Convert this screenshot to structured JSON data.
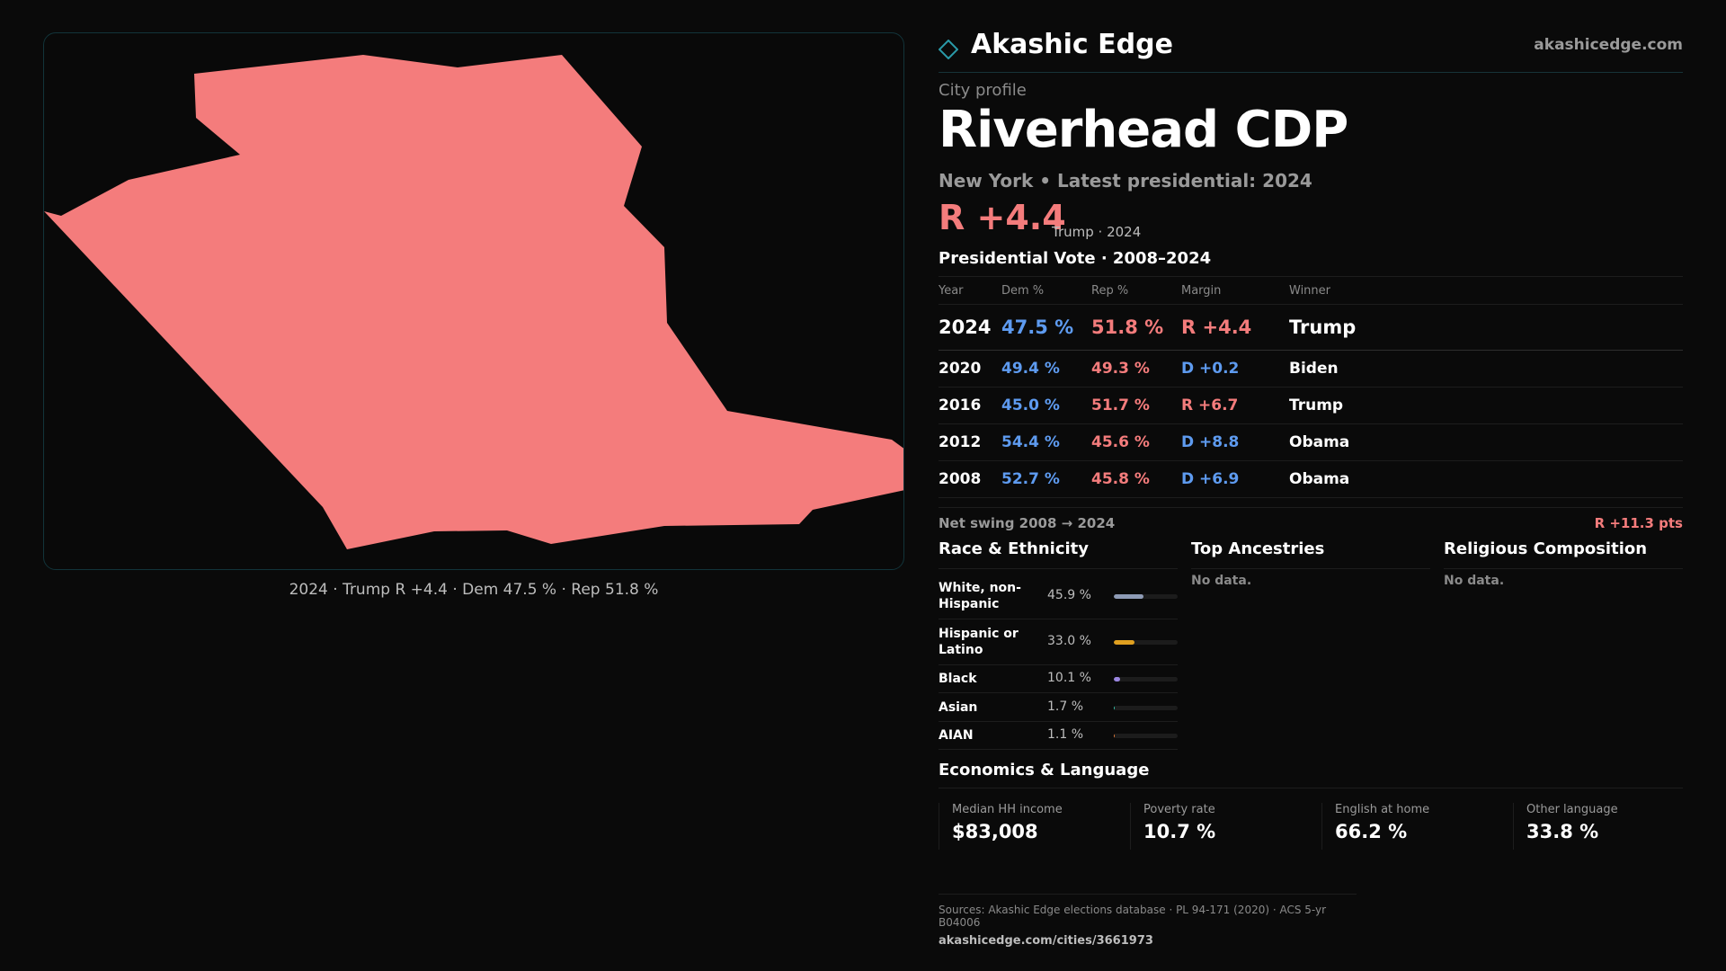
{
  "brand": {
    "name": "Akashic Edge",
    "url": "akashicedge.com"
  },
  "profile": {
    "kicker": "City profile",
    "title": "Riverhead CDP",
    "subtitle": "New York  • Latest presidential: 2024",
    "margin_big": "R +4.4",
    "margin_note": "Trump · 2024"
  },
  "map": {
    "caption": "2024 · Trump  R +4.4 · Dem 47.5 % · Rep 51.8 %",
    "fill_color": "#f47c7c"
  },
  "vote_table": {
    "title": "Presidential Vote · 2008–2024",
    "headers": {
      "year": "Year",
      "dem": "Dem %",
      "rep": "Rep %",
      "margin": "Margin",
      "winner": "Winner"
    },
    "rows": [
      {
        "year": "2024",
        "dem": "47.5 %",
        "rep": "51.8 %",
        "margin": "R +4.4",
        "winner": "Trump"
      },
      {
        "year": "2020",
        "dem": "49.4 %",
        "rep": "49.3 %",
        "margin": "D +0.2",
        "winner": "Biden"
      },
      {
        "year": "2016",
        "dem": "45.0 %",
        "rep": "51.7 %",
        "margin": "R +6.7",
        "winner": "Trump"
      },
      {
        "year": "2012",
        "dem": "54.4 %",
        "rep": "45.6 %",
        "margin": "D +8.8",
        "winner": "Obama"
      },
      {
        "year": "2008",
        "dem": "52.7 %",
        "rep": "45.8 %",
        "margin": "D +6.9",
        "winner": "Obama"
      }
    ]
  },
  "swing": {
    "label": "Net swing 2008 → 2024",
    "value": "R +11.3 pts"
  },
  "race": {
    "title": "Race & Ethnicity",
    "items": [
      {
        "name": "White, non-Hispanic",
        "pct": "45.9 %",
        "value": 45.9,
        "color": "#8e9bb5"
      },
      {
        "name": "Hispanic or Latino",
        "pct": "33.0 %",
        "value": 33.0,
        "color": "#e0a020"
      },
      {
        "name": "Black",
        "pct": "10.1 %",
        "value": 10.1,
        "color": "#9a86e0"
      },
      {
        "name": "Asian",
        "pct": "1.7 %",
        "value": 1.7,
        "color": "#36c0a8"
      },
      {
        "name": "AIAN",
        "pct": "1.1 %",
        "value": 1.1,
        "color": "#e07a3a"
      }
    ]
  },
  "ancestries": {
    "title": "Top Ancestries",
    "empty": "No data."
  },
  "religion": {
    "title": "Religious Composition",
    "empty": "No data."
  },
  "economics": {
    "title": "Economics & Language",
    "cards": [
      {
        "label": "Median HH income",
        "value": "$83,008"
      },
      {
        "label": "Poverty rate",
        "value": "10.7 %"
      },
      {
        "label": "English at home",
        "value": "66.2 %"
      },
      {
        "label": "Other language",
        "value": "33.8 %"
      }
    ]
  },
  "sources": {
    "line": "Sources: Akashic Edge elections database · PL 94-171 (2020) · ACS 5-yr B04006",
    "url": "akashicedge.com/cities/3661973"
  }
}
